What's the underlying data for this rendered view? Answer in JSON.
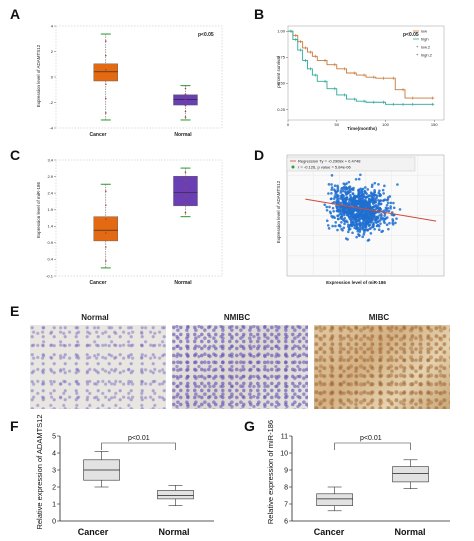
{
  "panels": {
    "A": {
      "letter": "A",
      "ylabel": "Expression level of ADAMTS12",
      "pvalue": "p<0.05",
      "yticks": [
        "4",
        "2",
        "0",
        "-2",
        "-4"
      ],
      "categories": [
        "Cancer",
        "Normal"
      ]
    },
    "B": {
      "letter": "B",
      "ylabel": "percent survival",
      "xlabel": "Time(months)",
      "pvalue": "p<0.05",
      "yticks": [
        "1.00",
        "0.75",
        "0.50",
        "0.25"
      ],
      "xticks": [
        "0",
        "50",
        "100",
        "150"
      ],
      "legend": [
        "low",
        "high",
        "low.2",
        "high.2"
      ]
    },
    "C": {
      "letter": "C",
      "ylabel": "Expression level of miR-186",
      "yticks": [
        "3.4",
        "2.9",
        "2.4",
        "1.9",
        "1.4",
        "0.9",
        "0.4",
        "-0.1"
      ],
      "categories": [
        "Cancer",
        "Normal"
      ]
    },
    "D": {
      "letter": "D",
      "ylabel": "Expression level of ADAMTS12",
      "xlabel": "Expression level of miR-186",
      "legend": [
        "Regression Ty = -0.2908x + 0.4748",
        "r = -0.126, p value = 5.84e-06"
      ]
    },
    "E": {
      "letter": "E",
      "labels": [
        "Normal",
        "NMIBC",
        "MIBC"
      ]
    },
    "F": {
      "letter": "F",
      "ylabel": "Relative expression of ADAMTS12",
      "pvalue": "p<0.01",
      "yticks": [
        "5",
        "4",
        "3",
        "2",
        "1",
        "0"
      ],
      "categories": [
        "Cancer",
        "Normal"
      ]
    },
    "G": {
      "letter": "G",
      "ylabel": "Relative expression of miR-186",
      "pvalue": "p<0.01",
      "yticks": [
        "11",
        "10",
        "9",
        "8",
        "7",
        "6"
      ],
      "categories": [
        "Cancer",
        "Normal"
      ]
    }
  },
  "chart_data": [
    {
      "panel": "A",
      "type": "box",
      "categories": [
        "Cancer",
        "Normal"
      ],
      "boxes": [
        {
          "min": -3.6,
          "q1": -0.2,
          "median": 0.6,
          "q3": 1.3,
          "max": 3.9
        },
        {
          "min": -3.6,
          "q1": -2.3,
          "median": -1.8,
          "q3": -1.4,
          "max": -0.6
        }
      ],
      "ylim": [
        -4.3,
        4.6
      ],
      "colors": [
        "#e36a12",
        "#6a3fb4"
      ]
    },
    {
      "panel": "B",
      "type": "line",
      "series": [
        {
          "color": "#c97a38",
          "x": [
            0,
            5,
            10,
            15,
            20,
            25,
            30,
            40,
            50,
            60,
            70,
            80,
            90,
            100,
            110,
            120,
            130,
            150
          ],
          "y": [
            1.0,
            0.96,
            0.9,
            0.84,
            0.8,
            0.76,
            0.72,
            0.68,
            0.64,
            0.6,
            0.58,
            0.56,
            0.55,
            0.55,
            0.44,
            0.36,
            0.36,
            0.36
          ]
        },
        {
          "color": "#2fa89a",
          "x": [
            0,
            5,
            10,
            15,
            20,
            25,
            30,
            40,
            50,
            60,
            70,
            80,
            90,
            100,
            110,
            120,
            130,
            150
          ],
          "y": [
            1.0,
            0.92,
            0.82,
            0.72,
            0.64,
            0.58,
            0.52,
            0.45,
            0.39,
            0.35,
            0.33,
            0.32,
            0.32,
            0.3,
            0.3,
            0.3,
            0.3,
            0.3
          ]
        }
      ],
      "xlim": [
        0,
        160
      ],
      "ylim": [
        0.15,
        1.05
      ]
    },
    {
      "panel": "C",
      "type": "box",
      "categories": [
        "Cancer",
        "Normal"
      ],
      "boxes": [
        {
          "min": -0.1,
          "q1": 0.9,
          "median": 1.3,
          "q3": 1.8,
          "max": 3.0
        },
        {
          "min": 1.8,
          "q1": 2.2,
          "median": 2.7,
          "q3": 3.3,
          "max": 3.6
        }
      ],
      "ylim": [
        -0.4,
        3.9
      ],
      "colors": [
        "#e36a12",
        "#6a3fb4"
      ]
    },
    {
      "panel": "D",
      "type": "scatter",
      "regression": {
        "slope": -0.2908,
        "intercept": 0.4748
      },
      "xlim": [
        0,
        6
      ],
      "ylim": [
        -4,
        4
      ],
      "color": "#1e6fd0"
    },
    {
      "panel": "F",
      "type": "box",
      "categories": [
        "Cancer",
        "Normal"
      ],
      "boxes": [
        {
          "min": 2.0,
          "q1": 2.4,
          "median": 3.0,
          "q3": 3.6,
          "max": 4.1
        },
        {
          "min": 0.9,
          "q1": 1.3,
          "median": 1.5,
          "q3": 1.8,
          "max": 2.1
        }
      ],
      "ylim": [
        0,
        5
      ]
    },
    {
      "panel": "G",
      "type": "box",
      "categories": [
        "Cancer",
        "Normal"
      ],
      "boxes": [
        {
          "min": 6.6,
          "q1": 6.9,
          "median": 7.3,
          "q3": 7.6,
          "max": 8.0
        },
        {
          "min": 7.9,
          "q1": 8.3,
          "median": 8.8,
          "q3": 9.2,
          "max": 9.6
        }
      ],
      "ylim": [
        6,
        11
      ]
    }
  ]
}
